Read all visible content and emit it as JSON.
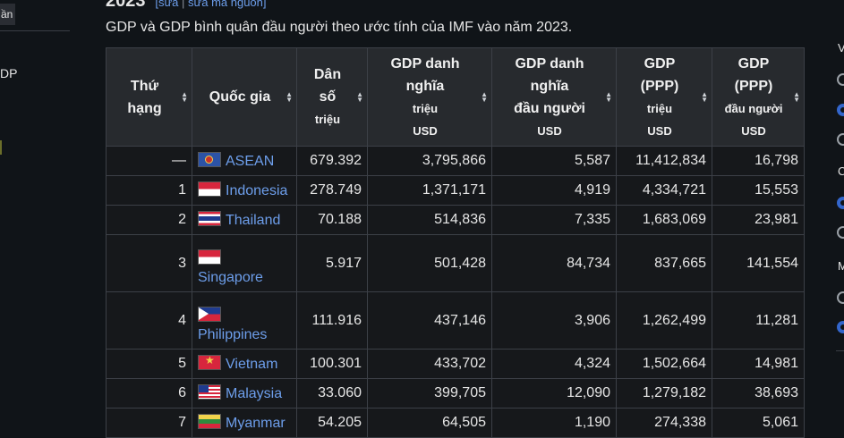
{
  "left_panel": {
    "tab_label": "ần",
    "item_label": "DP"
  },
  "heading": {
    "year": "2023",
    "edit_link": "[sửa",
    "separator": "|",
    "edit_source_link": "sửa mã nguồn]"
  },
  "caption": "GDP và GDP bình quân đầu người theo ước tính của IMF vào năm 2023.",
  "table": {
    "headers": [
      {
        "lines": [
          "Thứ",
          "hạng"
        ],
        "unit": ""
      },
      {
        "lines": [
          "Quốc gia"
        ],
        "unit": ""
      },
      {
        "lines": [
          "Dân",
          "số"
        ],
        "unit": "triệu"
      },
      {
        "lines": [
          "GDP danh",
          "nghĩa"
        ],
        "unit": "triệu",
        "unit2": "USD"
      },
      {
        "lines": [
          "GDP danh",
          "nghĩa",
          "đầu người"
        ],
        "unit": "USD"
      },
      {
        "lines": [
          "GDP",
          "(PPP)"
        ],
        "unit": "triệu",
        "unit2": "USD"
      },
      {
        "lines": [
          "GDP",
          "(PPP)"
        ],
        "unit": "đầu người",
        "unit2": "USD"
      }
    ],
    "rows": [
      {
        "rank": "—",
        "country": "ASEAN",
        "flag": "asean-flag-icon",
        "population": "679.392",
        "gdp_nominal": "3,795,866",
        "gdp_nominal_pc": "5,587",
        "gdp_ppp": "11,412,834",
        "gdp_ppp_pc": "16,798"
      },
      {
        "rank": "1",
        "country": "Indonesia",
        "flag": "indonesia-flag-icon",
        "population": "278.749",
        "gdp_nominal": "1,371,171",
        "gdp_nominal_pc": "4,919",
        "gdp_ppp": "4,334,721",
        "gdp_ppp_pc": "15,553"
      },
      {
        "rank": "2",
        "country": "Thailand",
        "flag": "thailand-flag-icon",
        "population": "70.188",
        "gdp_nominal": "514,836",
        "gdp_nominal_pc": "7,335",
        "gdp_ppp": "1,683,069",
        "gdp_ppp_pc": "23,981"
      },
      {
        "rank": "3",
        "country": "Singapore",
        "flag": "singapore-flag-icon",
        "population": "5.917",
        "gdp_nominal": "501,428",
        "gdp_nominal_pc": "84,734",
        "gdp_ppp": "837,665",
        "gdp_ppp_pc": "141,554"
      },
      {
        "rank": "4",
        "country": "Philippines",
        "flag": "philippines-flag-icon",
        "population": "111.916",
        "gdp_nominal": "437,146",
        "gdp_nominal_pc": "3,906",
        "gdp_ppp": "1,262,499",
        "gdp_ppp_pc": "11,281"
      },
      {
        "rank": "5",
        "country": "Vietnam",
        "flag": "vietnam-flag-icon",
        "population": "100.301",
        "gdp_nominal": "433,702",
        "gdp_nominal_pc": "4,324",
        "gdp_ppp": "1,502,664",
        "gdp_ppp_pc": "14,981"
      },
      {
        "rank": "6",
        "country": "Malaysia",
        "flag": "malaysia-flag-icon",
        "population": "33.060",
        "gdp_nominal": "399,705",
        "gdp_nominal_pc": "12,090",
        "gdp_ppp": "1,279,182",
        "gdp_ppp_pc": "38,693"
      },
      {
        "rank": "7",
        "country": "Myanmar",
        "flag": "myanmar-flag-icon",
        "population": "54.205",
        "gdp_nominal": "64,505",
        "gdp_nominal_pc": "1,190",
        "gdp_ppp": "274,338",
        "gdp_ppp_pc": "5,061"
      }
    ]
  },
  "right_panel": {
    "letters": [
      "V",
      "C",
      "M"
    ],
    "options": [
      {
        "checked": false
      },
      {
        "checked": true
      },
      {
        "checked": false
      },
      {
        "checked": true
      },
      {
        "checked": false
      },
      {
        "checked": false
      },
      {
        "checked": true
      }
    ]
  },
  "colors": {
    "background": "#101418",
    "link": "#6d9eeb",
    "header_bg": "#272a2e",
    "border": "#3c4047",
    "radio_selected": "#3366cc"
  }
}
